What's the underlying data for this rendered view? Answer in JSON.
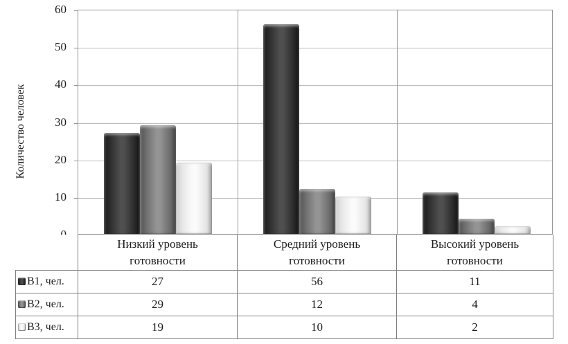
{
  "chart_data": {
    "type": "bar",
    "title": "",
    "xlabel": "",
    "ylabel": "Количество человек",
    "ylim": [
      0,
      60
    ],
    "yticks": [
      0,
      10,
      20,
      30,
      40,
      50,
      60
    ],
    "grid": "horizontal",
    "legend_position": "table-left",
    "categories": [
      "Низкий уровень готовности",
      "Средний уровень готовности",
      "Высокий уровень готовности"
    ],
    "series": [
      {
        "name": "В1, чел.",
        "values": [
          27,
          56,
          11
        ],
        "color": "#2e2e2e",
        "color_light": "#4f4f4f",
        "color_dark": "#181818"
      },
      {
        "name": "В2, чел.",
        "values": [
          29,
          12,
          4
        ],
        "color": "#6f6f6f",
        "color_light": "#949494",
        "color_dark": "#515151"
      },
      {
        "name": "В3, чел.",
        "values": [
          19,
          10,
          2
        ],
        "color": "#e7e7e7",
        "color_light": "#fbfbfb",
        "color_dark": "#cccccc"
      }
    ]
  },
  "ui": {
    "colors": {
      "background": "#ffffff",
      "plot_border": "#959595",
      "gridline": "#bcbcbc",
      "category_separator": "#9a9a9a",
      "table_border": "#7f7f7f",
      "text": "#1c1c1c"
    }
  }
}
